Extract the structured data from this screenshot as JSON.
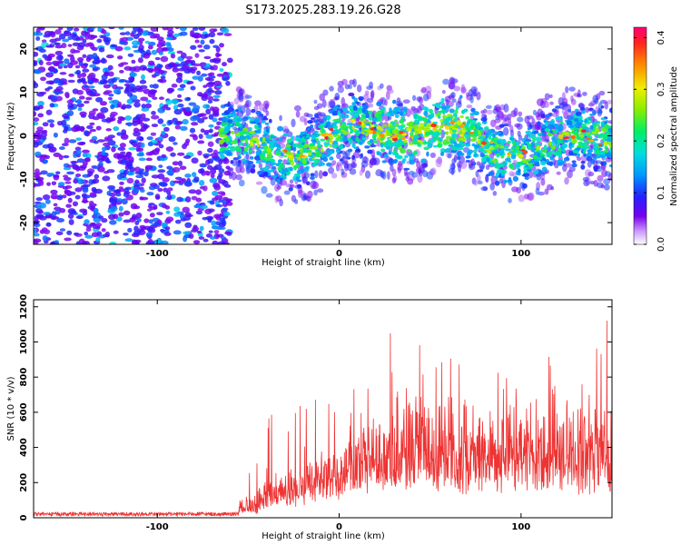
{
  "title": "S173.2025.283.19.26.G28",
  "chart_data": [
    {
      "type": "heatmap",
      "xlabel": "Height of straight line (km)",
      "ylabel": "Frequency (Hz)",
      "xlim": [
        -168,
        150
      ],
      "ylim": [
        -25,
        25
      ],
      "x_ticks": [
        -100,
        0,
        100
      ],
      "y_ticks": [
        -20,
        -10,
        0,
        10,
        20
      ],
      "colorbar": {
        "label": "Normalized spectral amplitude",
        "range": [
          0,
          0.42
        ],
        "ticks": [
          0.0,
          0.1,
          0.2,
          0.3,
          0.4
        ]
      }
    },
    {
      "type": "line",
      "xlabel": "Height of straight line (km)",
      "ylabel": "SNR (10 * v/v)",
      "xlim": [
        -168,
        150
      ],
      "ylim": [
        0,
        1240
      ],
      "x_ticks": [
        -100,
        0,
        100
      ],
      "y_ticks": [
        0,
        200,
        400,
        600,
        800,
        1000,
        1200
      ],
      "series": [
        {
          "name": "SNR",
          "color": "#ee3333"
        }
      ]
    }
  ]
}
